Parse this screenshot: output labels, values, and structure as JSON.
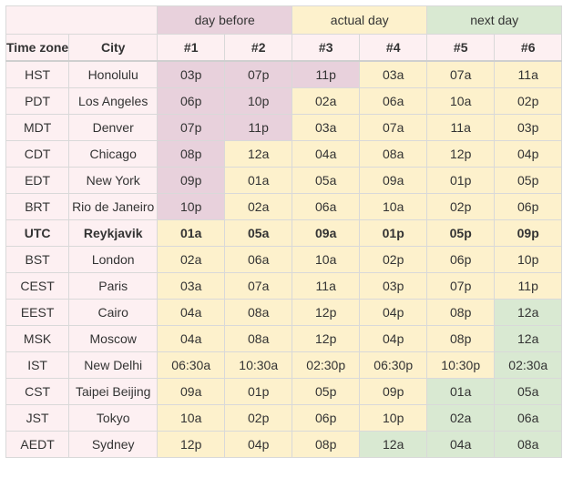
{
  "groups": {
    "before": "day before",
    "actual": "actual day",
    "next": "next day"
  },
  "headers": {
    "timezone": "Time zone",
    "city": "City",
    "slots": [
      "#1",
      "#2",
      "#3",
      "#4",
      "#5",
      "#6"
    ]
  },
  "colors": {
    "base": "#fdf0f2",
    "day_before": "#e8d1dc",
    "actual_day": "#fdf1cc",
    "next_day": "#d9e9d2"
  },
  "rows": [
    {
      "tz": "HST",
      "city": "Honolulu",
      "times": [
        "03p",
        "07p",
        "11p",
        "03a",
        "07a",
        "11a"
      ],
      "days": [
        "b",
        "b",
        "b",
        "a",
        "a",
        "a"
      ]
    },
    {
      "tz": "PDT",
      "city": "Los Angeles",
      "times": [
        "06p",
        "10p",
        "02a",
        "06a",
        "10a",
        "02p"
      ],
      "days": [
        "b",
        "b",
        "a",
        "a",
        "a",
        "a"
      ]
    },
    {
      "tz": "MDT",
      "city": "Denver",
      "times": [
        "07p",
        "11p",
        "03a",
        "07a",
        "11a",
        "03p"
      ],
      "days": [
        "b",
        "b",
        "a",
        "a",
        "a",
        "a"
      ]
    },
    {
      "tz": "CDT",
      "city": "Chicago",
      "times": [
        "08p",
        "12a",
        "04a",
        "08a",
        "12p",
        "04p"
      ],
      "days": [
        "b",
        "a",
        "a",
        "a",
        "a",
        "a"
      ]
    },
    {
      "tz": "EDT",
      "city": "New York",
      "times": [
        "09p",
        "01a",
        "05a",
        "09a",
        "01p",
        "05p"
      ],
      "days": [
        "b",
        "a",
        "a",
        "a",
        "a",
        "a"
      ]
    },
    {
      "tz": "BRT",
      "city": "Rio de Janeiro",
      "times": [
        "10p",
        "02a",
        "06a",
        "10a",
        "02p",
        "06p"
      ],
      "days": [
        "b",
        "a",
        "a",
        "a",
        "a",
        "a"
      ]
    },
    {
      "tz": "UTC",
      "city": "Reykjavik",
      "times": [
        "01a",
        "05a",
        "09a",
        "01p",
        "05p",
        "09p"
      ],
      "days": [
        "a",
        "a",
        "a",
        "a",
        "a",
        "a"
      ],
      "bold": true
    },
    {
      "tz": "BST",
      "city": "London",
      "times": [
        "02a",
        "06a",
        "10a",
        "02p",
        "06p",
        "10p"
      ],
      "days": [
        "a",
        "a",
        "a",
        "a",
        "a",
        "a"
      ]
    },
    {
      "tz": "CEST",
      "city": "Paris",
      "times": [
        "03a",
        "07a",
        "11a",
        "03p",
        "07p",
        "11p"
      ],
      "days": [
        "a",
        "a",
        "a",
        "a",
        "a",
        "a"
      ]
    },
    {
      "tz": "EEST",
      "city": "Cairo",
      "times": [
        "04a",
        "08a",
        "12p",
        "04p",
        "08p",
        "12a"
      ],
      "days": [
        "a",
        "a",
        "a",
        "a",
        "a",
        "n"
      ]
    },
    {
      "tz": "MSK",
      "city": "Moscow",
      "times": [
        "04a",
        "08a",
        "12p",
        "04p",
        "08p",
        "12a"
      ],
      "days": [
        "a",
        "a",
        "a",
        "a",
        "a",
        "n"
      ]
    },
    {
      "tz": "IST",
      "city": "New Delhi",
      "times": [
        "06:30a",
        "10:30a",
        "02:30p",
        "06:30p",
        "10:30p",
        "02:30a"
      ],
      "days": [
        "a",
        "a",
        "a",
        "a",
        "a",
        "n"
      ]
    },
    {
      "tz": "CST",
      "city": "Taipei Beijing",
      "times": [
        "09a",
        "01p",
        "05p",
        "09p",
        "01a",
        "05a"
      ],
      "days": [
        "a",
        "a",
        "a",
        "a",
        "n",
        "n"
      ]
    },
    {
      "tz": "JST",
      "city": "Tokyo",
      "times": [
        "10a",
        "02p",
        "06p",
        "10p",
        "02a",
        "06a"
      ],
      "days": [
        "a",
        "a",
        "a",
        "a",
        "n",
        "n"
      ]
    },
    {
      "tz": "AEDT",
      "city": "Sydney",
      "times": [
        "12p",
        "04p",
        "08p",
        "12a",
        "04a",
        "08a"
      ],
      "days": [
        "a",
        "a",
        "a",
        "n",
        "n",
        "n"
      ]
    }
  ]
}
